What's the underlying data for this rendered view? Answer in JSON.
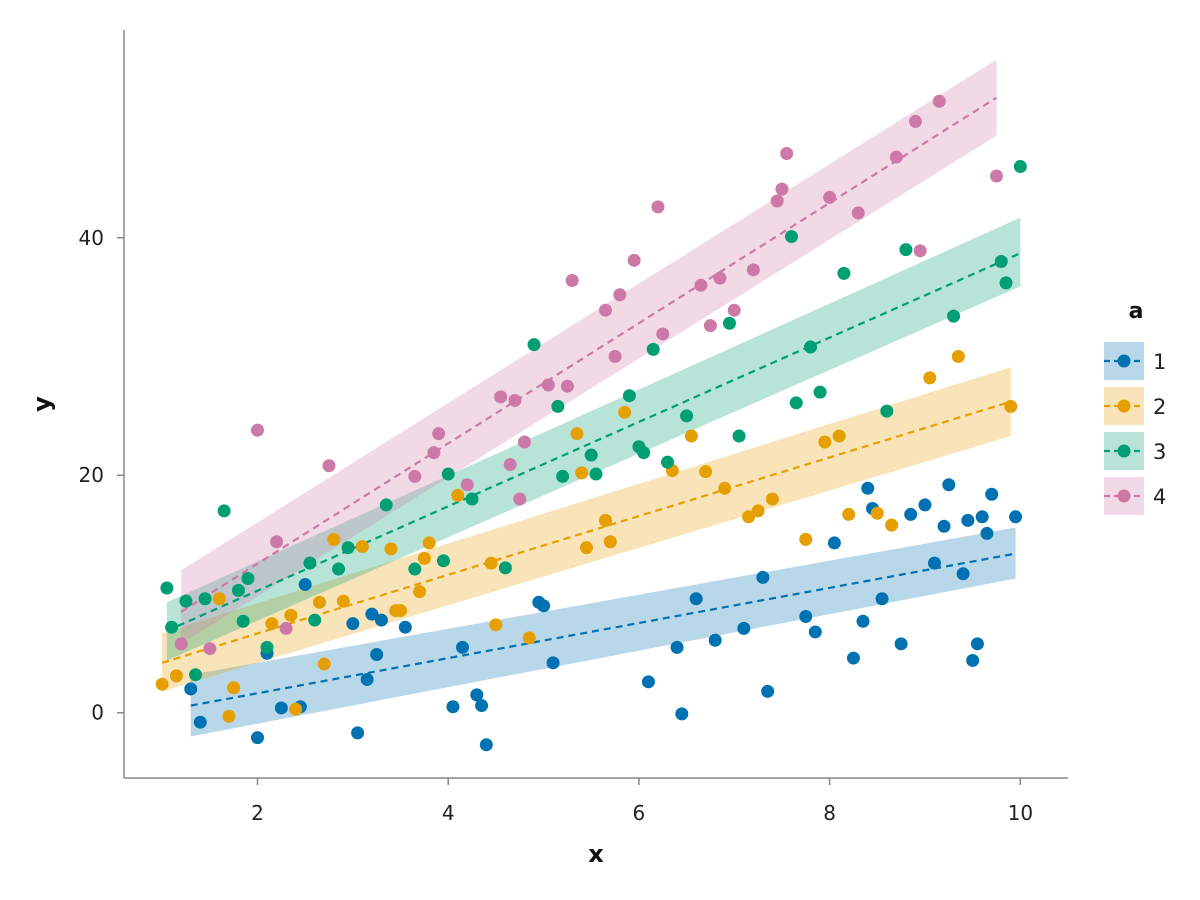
{
  "chart_data": {
    "type": "scatter",
    "xlabel": "x",
    "ylabel": "y",
    "xlim": [
      0.6,
      10.5
    ],
    "ylim": [
      -5.5,
      57.5
    ],
    "xticks": [
      2,
      4,
      6,
      8,
      10
    ],
    "yticks": [
      0,
      20,
      40
    ],
    "grid": false,
    "legend": {
      "title": "a",
      "placement": "right"
    },
    "series": [
      {
        "name": "1",
        "color": "#0072B2",
        "points": [
          [
            1.3,
            2
          ],
          [
            1.4,
            -0.8
          ],
          [
            2.1,
            5
          ],
          [
            2.25,
            0.4
          ],
          [
            2.45,
            0.5
          ],
          [
            2.5,
            10.8
          ],
          [
            2,
            -2.1
          ],
          [
            3.0,
            7.5
          ],
          [
            3.05,
            -1.7
          ],
          [
            3.15,
            2.8
          ],
          [
            3.2,
            8.3
          ],
          [
            3.25,
            4.9
          ],
          [
            3.3,
            7.8
          ],
          [
            3.55,
            7.2
          ],
          [
            4.05,
            0.5
          ],
          [
            4.15,
            5.5
          ],
          [
            4.3,
            1.5
          ],
          [
            4.35,
            0.6
          ],
          [
            4.4,
            -2.7
          ],
          [
            4.95,
            9.3
          ],
          [
            5.0,
            9.0
          ],
          [
            5.1,
            4.2
          ],
          [
            6.1,
            2.6
          ],
          [
            6.4,
            5.5
          ],
          [
            6.45,
            -0.1
          ],
          [
            6.6,
            9.6
          ],
          [
            6.8,
            6.1
          ],
          [
            7.1,
            7.1
          ],
          [
            7.3,
            11.4
          ],
          [
            7.35,
            1.8
          ],
          [
            7.75,
            8.1
          ],
          [
            7.85,
            6.8
          ],
          [
            8.05,
            14.3
          ],
          [
            8.25,
            4.6
          ],
          [
            8.35,
            7.7
          ],
          [
            8.4,
            18.9
          ],
          [
            8.45,
            17.2
          ],
          [
            8.55,
            9.6
          ],
          [
            8.75,
            5.8
          ],
          [
            8.85,
            16.7
          ],
          [
            9.0,
            17.5
          ],
          [
            9.1,
            12.6
          ],
          [
            9.2,
            15.7
          ],
          [
            9.25,
            19.2
          ],
          [
            9.4,
            11.7
          ],
          [
            9.45,
            16.2
          ],
          [
            9.5,
            4.4
          ],
          [
            9.55,
            5.8
          ],
          [
            9.6,
            16.5
          ],
          [
            9.65,
            15.1
          ],
          [
            9.7,
            18.4
          ],
          [
            9.95,
            16.5
          ]
        ],
        "fit": {
          "x": [
            1.3,
            9.95
          ],
          "y": [
            0.6,
            13.4
          ]
        },
        "band": {
          "x": [
            1.3,
            9.95
          ],
          "lower": [
            -2.0,
            11.3
          ],
          "upper": [
            3.2,
            15.6
          ]
        }
      },
      {
        "name": "2",
        "color": "#E69F00",
        "points": [
          [
            1.0,
            2.4
          ],
          [
            1.15,
            3.1
          ],
          [
            1.6,
            9.6
          ],
          [
            1.7,
            -0.3
          ],
          [
            1.75,
            2.1
          ],
          [
            2.15,
            7.5
          ],
          [
            2.35,
            8.2
          ],
          [
            2.4,
            0.3
          ],
          [
            2.65,
            9.3
          ],
          [
            2.7,
            4.1
          ],
          [
            2.8,
            14.6
          ],
          [
            2.9,
            9.4
          ],
          [
            3.1,
            14.0
          ],
          [
            3.4,
            13.8
          ],
          [
            3.45,
            8.6
          ],
          [
            3.5,
            8.6
          ],
          [
            3.7,
            10.2
          ],
          [
            3.75,
            13.0
          ],
          [
            3.8,
            14.3
          ],
          [
            4.1,
            18.3
          ],
          [
            4.45,
            12.6
          ],
          [
            4.5,
            7.4
          ],
          [
            4.85,
            6.3
          ],
          [
            5.35,
            23.5
          ],
          [
            5.4,
            20.2
          ],
          [
            5.45,
            13.9
          ],
          [
            5.65,
            16.2
          ],
          [
            5.7,
            14.4
          ],
          [
            5.85,
            25.3
          ],
          [
            6.35,
            20.4
          ],
          [
            6.55,
            23.3
          ],
          [
            6.7,
            20.3
          ],
          [
            6.9,
            18.9
          ],
          [
            7.15,
            16.5
          ],
          [
            7.25,
            17.0
          ],
          [
            7.4,
            18.0
          ],
          [
            7.75,
            14.6
          ],
          [
            7.95,
            22.8
          ],
          [
            8.1,
            23.3
          ],
          [
            8.2,
            16.7
          ],
          [
            8.5,
            16.8
          ],
          [
            8.65,
            15.8
          ],
          [
            9.05,
            28.2
          ],
          [
            9.35,
            30.0
          ],
          [
            9.9,
            25.8
          ]
        ],
        "fit": {
          "x": [
            1.0,
            9.9
          ],
          "y": [
            4.2,
            26.2
          ]
        },
        "band": {
          "x": [
            1.0,
            9.9
          ],
          "lower": [
            1.8,
            23.3
          ],
          "upper": [
            6.7,
            29.1
          ]
        }
      },
      {
        "name": "3",
        "color": "#009E73",
        "points": [
          [
            1.05,
            10.5
          ],
          [
            1.1,
            7.2
          ],
          [
            1.25,
            9.4
          ],
          [
            1.35,
            3.2
          ],
          [
            1.45,
            9.6
          ],
          [
            1.65,
            17.0
          ],
          [
            1.8,
            10.3
          ],
          [
            1.85,
            7.7
          ],
          [
            1.9,
            11.3
          ],
          [
            2.1,
            5.5
          ],
          [
            2.55,
            12.6
          ],
          [
            2.6,
            7.8
          ],
          [
            2.85,
            12.1
          ],
          [
            2.95,
            13.9
          ],
          [
            3.35,
            17.5
          ],
          [
            3.65,
            12.1
          ],
          [
            3.95,
            12.8
          ],
          [
            4.0,
            20.1
          ],
          [
            4.25,
            18.0
          ],
          [
            4.6,
            12.2
          ],
          [
            4.9,
            31.0
          ],
          [
            5.15,
            25.8
          ],
          [
            5.2,
            19.9
          ],
          [
            5.5,
            21.7
          ],
          [
            5.55,
            20.1
          ],
          [
            5.9,
            26.7
          ],
          [
            6.0,
            22.4
          ],
          [
            6.05,
            21.9
          ],
          [
            6.15,
            30.6
          ],
          [
            6.3,
            21.1
          ],
          [
            6.5,
            25.0
          ],
          [
            6.95,
            32.8
          ],
          [
            7.05,
            23.3
          ],
          [
            7.6,
            40.1
          ],
          [
            7.65,
            26.1
          ],
          [
            7.8,
            30.8
          ],
          [
            7.9,
            27.0
          ],
          [
            8.15,
            37.0
          ],
          [
            8.6,
            25.4
          ],
          [
            8.8,
            39.0
          ],
          [
            9.3,
            33.4
          ],
          [
            9.8,
            38.0
          ],
          [
            9.85,
            36.2
          ],
          [
            10.0,
            46.0
          ]
        ],
        "fit": {
          "x": [
            1.05,
            10.0
          ],
          "y": [
            6.9,
            38.7
          ]
        },
        "band": {
          "x": [
            1.05,
            10.0
          ],
          "lower": [
            4.4,
            35.9
          ],
          "upper": [
            9.3,
            41.7
          ]
        }
      },
      {
        "name": "4",
        "color": "#CC79A7",
        "points": [
          [
            1.2,
            5.8
          ],
          [
            1.5,
            5.4
          ],
          [
            2.0,
            23.8
          ],
          [
            2.2,
            14.4
          ],
          [
            2.3,
            7.1
          ],
          [
            2.75,
            20.8
          ],
          [
            3.65,
            19.9
          ],
          [
            3.85,
            21.9
          ],
          [
            3.9,
            23.5
          ],
          [
            4.2,
            19.2
          ],
          [
            4.55,
            26.6
          ],
          [
            4.65,
            20.9
          ],
          [
            4.7,
            26.3
          ],
          [
            4.75,
            18.0
          ],
          [
            4.8,
            22.8
          ],
          [
            5.05,
            27.6
          ],
          [
            5.25,
            27.5
          ],
          [
            5.3,
            36.4
          ],
          [
            5.65,
            33.9
          ],
          [
            5.75,
            30.0
          ],
          [
            5.8,
            35.2
          ],
          [
            5.95,
            38.1
          ],
          [
            6.2,
            42.6
          ],
          [
            6.25,
            31.9
          ],
          [
            6.65,
            36.0
          ],
          [
            6.75,
            32.6
          ],
          [
            6.85,
            36.6
          ],
          [
            7.0,
            33.9
          ],
          [
            7.2,
            37.3
          ],
          [
            7.45,
            43.1
          ],
          [
            7.5,
            44.1
          ],
          [
            7.55,
            47.1
          ],
          [
            8.0,
            43.4
          ],
          [
            8.3,
            42.1
          ],
          [
            8.7,
            46.8
          ],
          [
            8.9,
            49.8
          ],
          [
            8.95,
            38.9
          ],
          [
            9.15,
            51.5
          ],
          [
            9.75,
            45.2
          ]
        ],
        "fit": {
          "x": [
            1.2,
            9.75
          ],
          "y": [
            8.5,
            51.8
          ]
        },
        "band": {
          "x": [
            1.2,
            9.75
          ],
          "lower": [
            5.8,
            48.6
          ],
          "upper": [
            12.0,
            55.0
          ]
        }
      }
    ]
  }
}
